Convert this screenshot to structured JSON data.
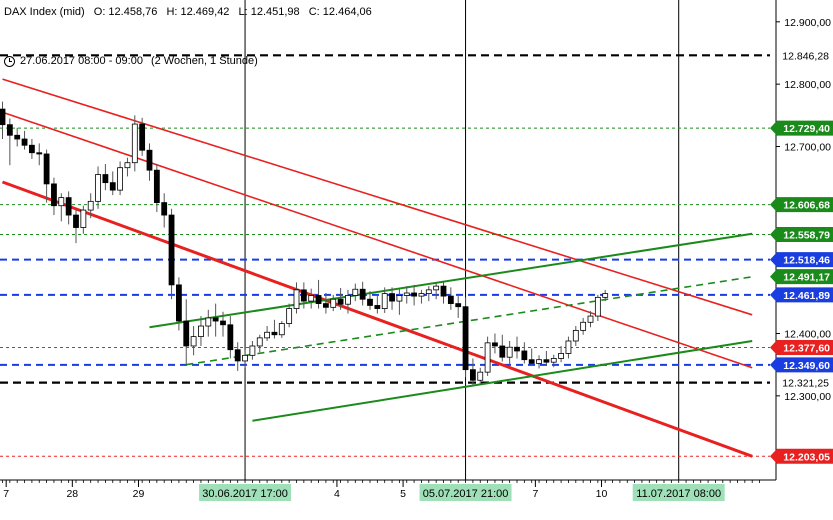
{
  "header": {
    "instrument": "DAX Index (mid)",
    "open": "O: 12.458,76",
    "high": "H: 12.469,42",
    "low": "L: 12.451,98",
    "close": "C: 12.464,06"
  },
  "subheader": {
    "range": "27.06.2017 08:00 - 09:00",
    "period": "(2 Wochen, 1 Stunde)"
  },
  "colors": {
    "green": "#1a8a1a",
    "red": "#e82020",
    "blue": "#1a3de0",
    "black": "#000000",
    "datebox": "#9fe0b8"
  },
  "chart_data": {
    "type": "candlestick",
    "ylim": [
      12165,
      12935
    ],
    "y_ticks": [
      {
        "value": 12900,
        "label": "12.900,00"
      },
      {
        "value": 12800,
        "label": "12.800,00"
      },
      {
        "value": 12700,
        "label": "12.700,00"
      },
      {
        "value": 12400,
        "label": "12.400,00"
      },
      {
        "value": 12300,
        "label": "12.300,00"
      }
    ],
    "x_ticks": [
      {
        "label": "7",
        "at": 0.5
      },
      {
        "label": "28",
        "at": 9.5
      },
      {
        "label": "29",
        "at": 18.5
      },
      {
        "label": "4",
        "at": 45.5
      },
      {
        "label": "5",
        "at": 54.5
      },
      {
        "label": "7",
        "at": 72.5
      },
      {
        "label": "10",
        "at": 81.5
      }
    ],
    "x_highlight_labels": [
      {
        "label": "30.06.2017 17:00",
        "at": 33
      },
      {
        "label": "05.07.2017 21:00",
        "at": 63
      },
      {
        "label": "11.07.2017 08:00",
        "at": 92
      }
    ],
    "vertical_lines_at": [
      33,
      63,
      92
    ],
    "horizontal_levels": [
      {
        "value": 12846.28,
        "label": "12.846,28",
        "style": "black-dash",
        "tag": "black-text"
      },
      {
        "value": 12729.4,
        "label": "12.729,40",
        "style": "green-dot",
        "tag": "green"
      },
      {
        "value": 12606.68,
        "label": "12.606,68",
        "style": "green-dot",
        "tag": "green"
      },
      {
        "value": 12558.79,
        "label": "12.558,79",
        "style": "green-dot",
        "tag": "green"
      },
      {
        "value": 12518.46,
        "label": "12.518,46",
        "style": "blue-dash",
        "tag": "blue"
      },
      {
        "value": 12491.17,
        "label": "12.491,17",
        "style": "none",
        "tag": "green"
      },
      {
        "value": 12461.89,
        "label": "12.461,89",
        "style": "blue-dash",
        "tag": "blue"
      },
      {
        "value": 12377.6,
        "label": "12.377,60",
        "style": "red-dot",
        "tag": "red"
      },
      {
        "value": 12349.6,
        "label": "12.349,60",
        "style": "blue-dash",
        "tag": "blue"
      },
      {
        "value": 12321.25,
        "label": "12.321,25",
        "style": "black-dash",
        "tag": "black-text"
      },
      {
        "value": 12203.05,
        "label": "12.203,05",
        "style": "red-dot",
        "tag": "red"
      }
    ],
    "trend_lines": [
      {
        "color": "red",
        "width": 1.6,
        "from": [
          0,
          12808
        ],
        "to": [
          102,
          12430
        ]
      },
      {
        "color": "red",
        "width": 1.6,
        "from": [
          0,
          12755
        ],
        "to": [
          102,
          12345
        ]
      },
      {
        "color": "red",
        "width": 3,
        "from": [
          0,
          12643
        ],
        "to": [
          102,
          12203
        ]
      },
      {
        "color": "green",
        "width": 2,
        "from": [
          20,
          12410
        ],
        "to": [
          102,
          12560
        ]
      },
      {
        "color": "green",
        "width": 1.6,
        "dashed": true,
        "from": [
          25,
          12350
        ],
        "to": [
          102,
          12491
        ]
      },
      {
        "color": "green",
        "width": 2,
        "from": [
          34,
          12260
        ],
        "to": [
          102,
          12388
        ]
      }
    ],
    "candles": [
      [
        12760,
        12772,
        12712,
        12735
      ],
      [
        12735,
        12745,
        12670,
        12718
      ],
      [
        12718,
        12730,
        12700,
        12712
      ],
      [
        12712,
        12725,
        12695,
        12702
      ],
      [
        12702,
        12712,
        12680,
        12690
      ],
      [
        12690,
        12705,
        12670,
        12688
      ],
      [
        12688,
        12695,
        12610,
        12640
      ],
      [
        12640,
        12650,
        12590,
        12605
      ],
      [
        12605,
        12625,
        12580,
        12618
      ],
      [
        12618,
        12628,
        12575,
        12590
      ],
      [
        12590,
        12600,
        12545,
        12570
      ],
      [
        12570,
        12605,
        12560,
        12598
      ],
      [
        12598,
        12625,
        12585,
        12612
      ],
      [
        12612,
        12668,
        12600,
        12655
      ],
      [
        12655,
        12672,
        12630,
        12642
      ],
      [
        12642,
        12660,
        12622,
        12630
      ],
      [
        12630,
        12676,
        12622,
        12666
      ],
      [
        12666,
        12682,
        12652,
        12674
      ],
      [
        12674,
        12750,
        12660,
        12736
      ],
      [
        12736,
        12746,
        12685,
        12694
      ],
      [
        12694,
        12705,
        12645,
        12662
      ],
      [
        12662,
        12672,
        12595,
        12610
      ],
      [
        12610,
        12625,
        12570,
        12590
      ],
      [
        12590,
        12600,
        12455,
        12478
      ],
      [
        12478,
        12490,
        12405,
        12420
      ],
      [
        12420,
        12455,
        12350,
        12380
      ],
      [
        12380,
        12412,
        12365,
        12395
      ],
      [
        12395,
        12428,
        12380,
        12412
      ],
      [
        12412,
        12438,
        12395,
        12425
      ],
      [
        12425,
        12448,
        12395,
        12420
      ],
      [
        12420,
        12435,
        12395,
        12414
      ],
      [
        12414,
        12428,
        12360,
        12374
      ],
      [
        12374,
        12386,
        12340,
        12356
      ],
      [
        12356,
        12374,
        12345,
        12365
      ],
      [
        12365,
        12388,
        12358,
        12380
      ],
      [
        12380,
        12398,
        12370,
        12393
      ],
      [
        12393,
        12412,
        12388,
        12402
      ],
      [
        12402,
        12422,
        12392,
        12398
      ],
      [
        12398,
        12420,
        12393,
        12416
      ],
      [
        12416,
        12448,
        12410,
        12440
      ],
      [
        12440,
        12482,
        12432,
        12470
      ],
      [
        12470,
        12482,
        12440,
        12452
      ],
      [
        12452,
        12472,
        12440,
        12461
      ],
      [
        12461,
        12486,
        12440,
        12448
      ],
      [
        12448,
        12465,
        12432,
        12442
      ],
      [
        12442,
        12462,
        12436,
        12455
      ],
      [
        12455,
        12473,
        12438,
        12447
      ],
      [
        12447,
        12470,
        12432,
        12461
      ],
      [
        12461,
        12480,
        12452,
        12471
      ],
      [
        12471,
        12483,
        12445,
        12455
      ],
      [
        12455,
        12468,
        12438,
        12445
      ],
      [
        12445,
        12460,
        12432,
        12440
      ],
      [
        12440,
        12474,
        12433,
        12464
      ],
      [
        12464,
        12474,
        12438,
        12452
      ],
      [
        12452,
        12472,
        12430,
        12461
      ],
      [
        12461,
        12476,
        12448,
        12465
      ],
      [
        12465,
        12478,
        12445,
        12460
      ],
      [
        12460,
        12470,
        12448,
        12464
      ],
      [
        12464,
        12476,
        12452,
        12470
      ],
      [
        12470,
        12482,
        12455,
        12476
      ],
      [
        12476,
        12484,
        12448,
        12460
      ],
      [
        12460,
        12474,
        12438,
        12448
      ],
      [
        12448,
        12460,
        12425,
        12443
      ],
      [
        12443,
        12458,
        12330,
        12342
      ],
      [
        12342,
        12360,
        12318,
        12325
      ],
      [
        12325,
        12345,
        12318,
        12338
      ],
      [
        12338,
        12395,
        12332,
        12385
      ],
      [
        12385,
        12400,
        12368,
        12380
      ],
      [
        12380,
        12398,
        12355,
        12362
      ],
      [
        12362,
        12388,
        12348,
        12378
      ],
      [
        12378,
        12395,
        12360,
        12372
      ],
      [
        12372,
        12386,
        12352,
        12358
      ],
      [
        12358,
        12376,
        12348,
        12352
      ],
      [
        12352,
        12365,
        12344,
        12358
      ],
      [
        12358,
        12372,
        12348,
        12354
      ],
      [
        12354,
        12366,
        12346,
        12360
      ],
      [
        12360,
        12380,
        12354,
        12368
      ],
      [
        12368,
        12395,
        12360,
        12388
      ],
      [
        12388,
        12412,
        12380,
        12405
      ],
      [
        12405,
        12425,
        12398,
        12418
      ],
      [
        12418,
        12436,
        12410,
        12428
      ],
      [
        12428,
        12462,
        12420,
        12458
      ],
      [
        12458,
        12470,
        12452,
        12464
      ]
    ]
  }
}
